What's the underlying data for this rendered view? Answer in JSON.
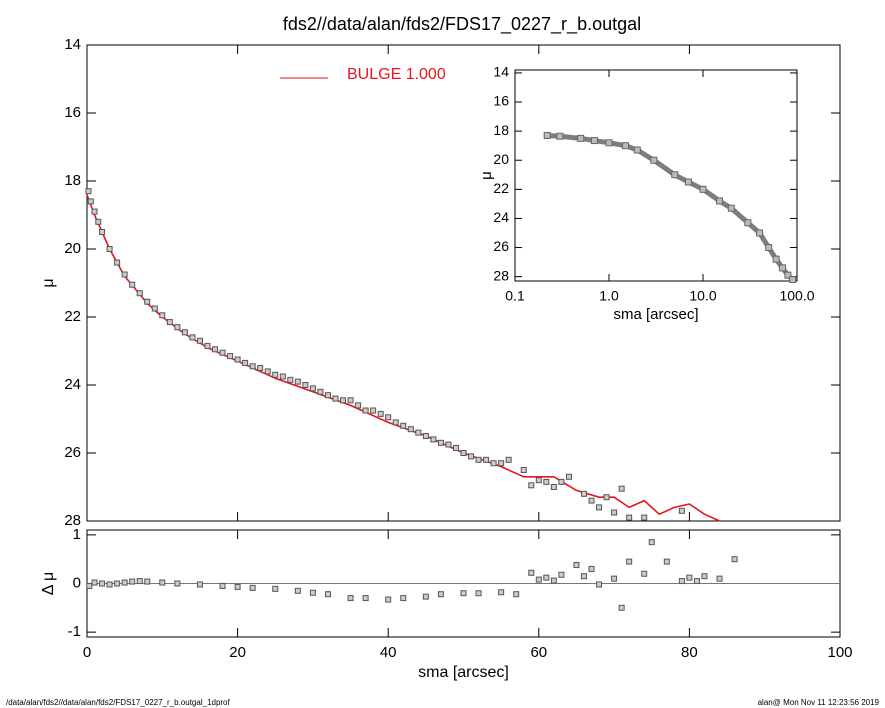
{
  "chart_data": [
    {
      "type": "scatter",
      "title": "fds2//data/alan/fds2/FDS17_0227_r_b.outgal",
      "y_label": "μ",
      "xlim": [
        0,
        100
      ],
      "ylim": [
        14,
        28
      ],
      "y_inverted": true,
      "yticks": [
        14,
        16,
        18,
        20,
        22,
        24,
        26,
        28
      ],
      "series": [
        {
          "name": "BULGE  1.000",
          "color": "#e8141b",
          "style": "line",
          "x": [
            0,
            1,
            2,
            3,
            5,
            8,
            10,
            13,
            16,
            20,
            25,
            30,
            35,
            40,
            45,
            50,
            55,
            58,
            62,
            65,
            68,
            70,
            72,
            74,
            76,
            78,
            80,
            82,
            84
          ],
          "values": [
            18.4,
            19.0,
            19.5,
            20.0,
            20.8,
            21.6,
            22.0,
            22.5,
            22.9,
            23.3,
            23.8,
            24.2,
            24.6,
            25.1,
            25.5,
            26.0,
            26.4,
            26.7,
            26.7,
            27.1,
            27.3,
            27.3,
            27.6,
            27.4,
            27.8,
            27.6,
            27.5,
            27.8,
            28.0
          ]
        },
        {
          "color": "#555555",
          "style": "marker",
          "x": [
            0.2,
            0.5,
            1,
            1.5,
            2,
            3,
            4,
            5,
            6,
            7,
            8,
            9,
            10,
            11,
            12,
            13,
            14,
            15,
            16,
            17,
            18,
            19,
            20,
            21,
            22,
            23,
            24,
            25,
            26,
            27,
            28,
            29,
            30,
            31,
            32,
            33,
            34,
            35,
            36,
            37,
            38,
            39,
            40,
            41,
            42,
            43,
            44,
            45,
            46,
            47,
            48,
            49,
            50,
            51,
            52,
            53,
            54,
            55,
            56,
            58,
            59,
            60,
            61,
            62,
            63,
            64,
            66,
            67,
            68,
            69,
            70,
            71,
            72,
            74,
            79
          ],
          "values": [
            18.3,
            18.6,
            18.9,
            19.2,
            19.5,
            20.0,
            20.4,
            20.75,
            21.05,
            21.3,
            21.55,
            21.75,
            21.95,
            22.15,
            22.3,
            22.45,
            22.6,
            22.7,
            22.85,
            22.95,
            23.05,
            23.15,
            23.25,
            23.35,
            23.45,
            23.5,
            23.6,
            23.7,
            23.75,
            23.85,
            23.9,
            24.0,
            24.1,
            24.2,
            24.3,
            24.4,
            24.45,
            24.45,
            24.6,
            24.75,
            24.75,
            24.85,
            24.95,
            25.1,
            25.2,
            25.3,
            25.4,
            25.5,
            25.6,
            25.7,
            25.75,
            25.85,
            26.0,
            26.1,
            26.2,
            26.2,
            26.3,
            26.3,
            26.2,
            26.5,
            26.95,
            26.8,
            26.85,
            27.0,
            26.85,
            26.7,
            27.2,
            27.4,
            27.6,
            27.3,
            27.75,
            27.05,
            27.9,
            27.9,
            27.7
          ]
        }
      ]
    },
    {
      "type": "scatter",
      "x_label": "sma [arcsec]",
      "y_label": "Δ μ",
      "xlim": [
        0,
        100
      ],
      "ylim": [
        -1.1,
        1.1
      ],
      "xticks": [
        0,
        20,
        40,
        60,
        80,
        100
      ],
      "yticks": [
        -1,
        0,
        1
      ],
      "series": [
        {
          "color": "#555555",
          "style": "marker",
          "x": [
            0.3,
            1,
            2,
            3,
            4,
            5,
            6,
            7,
            8,
            10,
            12,
            15,
            18,
            20,
            22,
            25,
            28,
            30,
            32,
            35,
            37,
            40,
            42,
            45,
            47,
            50,
            52,
            55,
            57,
            59,
            60,
            61,
            62,
            63,
            65,
            66,
            67,
            68,
            70,
            71,
            72,
            74,
            75,
            77,
            79,
            80,
            81,
            82,
            84,
            86
          ],
          "values": [
            -0.05,
            0.02,
            0.0,
            -0.02,
            0.0,
            0.02,
            0.04,
            0.05,
            0.04,
            0.02,
            0.0,
            -0.02,
            -0.05,
            -0.07,
            -0.09,
            -0.11,
            -0.15,
            -0.19,
            -0.22,
            -0.3,
            -0.3,
            -0.33,
            -0.3,
            -0.27,
            -0.22,
            -0.2,
            -0.2,
            -0.18,
            -0.22,
            0.22,
            0.08,
            0.12,
            0.06,
            0.18,
            0.38,
            0.15,
            0.3,
            -0.02,
            0.1,
            -0.5,
            0.45,
            0.2,
            0.85,
            0.45,
            0.05,
            0.12,
            0.05,
            0.15,
            0.1,
            0.5
          ]
        }
      ]
    },
    {
      "type": "line",
      "x_label": "sma [arcsec]",
      "y_label": "μ",
      "xscale": "log",
      "xlim": [
        0.1,
        100
      ],
      "ylim": [
        13.8,
        28.3
      ],
      "y_inverted": true,
      "xticks": [
        {
          "value": 0.1,
          "label": "0.1"
        },
        {
          "value": 1,
          "label": "1.0"
        },
        {
          "value": 10,
          "label": "10.0"
        },
        {
          "value": 100,
          "label": "100.0"
        }
      ],
      "yticks": [
        14,
        16,
        18,
        20,
        22,
        24,
        26,
        28
      ],
      "series": [
        {
          "color": "#666666",
          "style": "line",
          "x": [
            0.22,
            0.3,
            0.5,
            0.7,
            1,
            1.5,
            2,
            3,
            5,
            7,
            10,
            15,
            20,
            30,
            40,
            50,
            60,
            70,
            80,
            90
          ],
          "values": [
            18.3,
            18.35,
            18.5,
            18.65,
            18.8,
            19.0,
            19.3,
            20.0,
            21.0,
            21.5,
            22.0,
            22.8,
            23.3,
            24.3,
            25.0,
            26.0,
            26.8,
            27.4,
            27.9,
            28.2
          ]
        }
      ]
    }
  ],
  "footer": {
    "left": "/data/alan/fds2//data/alan/fds2/FDS17_0227_r_b.outgal_1dprof",
    "right": "alan@  Mon Nov 11 12:23:56 2019"
  }
}
